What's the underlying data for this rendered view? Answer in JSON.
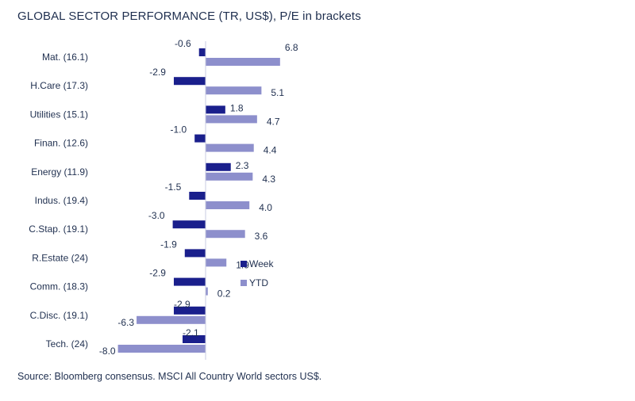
{
  "chart_data": {
    "type": "bar",
    "orientation": "horizontal",
    "title": "GLOBAL SECTOR PERFORMANCE (TR, US$), P/E in brackets",
    "source": "Source: Bloomberg consensus. MSCI All Country World sectors US$.",
    "categories": [
      "Mat. (16.1)",
      "H.Care (17.3)",
      "Utilities (15.1)",
      "Finan. (12.6)",
      "Energy (11.9)",
      "Indus. (19.4)",
      "C.Stap. (19.1)",
      "R.Estate (24)",
      "Comm. (18.3)",
      "C.Disc. (19.1)",
      "Tech. (24)"
    ],
    "series": [
      {
        "name": "Week",
        "color": "#1a1f8c",
        "values": [
          -0.6,
          -2.9,
          1.8,
          -1.0,
          2.3,
          -1.5,
          -3.0,
          -1.9,
          -2.9,
          -2.9,
          -2.1
        ]
      },
      {
        "name": "YTD",
        "color": "#8d8fcc",
        "values": [
          6.8,
          5.1,
          4.7,
          4.4,
          4.3,
          4.0,
          3.6,
          1.9,
          0.2,
          -6.3,
          -8.0
        ]
      }
    ],
    "value_labels": {
      "Week": [
        "-0.6",
        "-2.9",
        "1.8",
        "-1.0",
        "2.3",
        "-1.5",
        "-3.0",
        "-1.9",
        "-2.9",
        "-2.9",
        "-2.1"
      ],
      "YTD": [
        "6.8",
        "5.1",
        "4.7",
        "4.4",
        "4.3",
        "4.0",
        "3.6",
        "1.9",
        "0.2",
        "-6.3",
        "-8.0"
      ]
    },
    "legend_placement": "right-middle",
    "grid": false
  }
}
